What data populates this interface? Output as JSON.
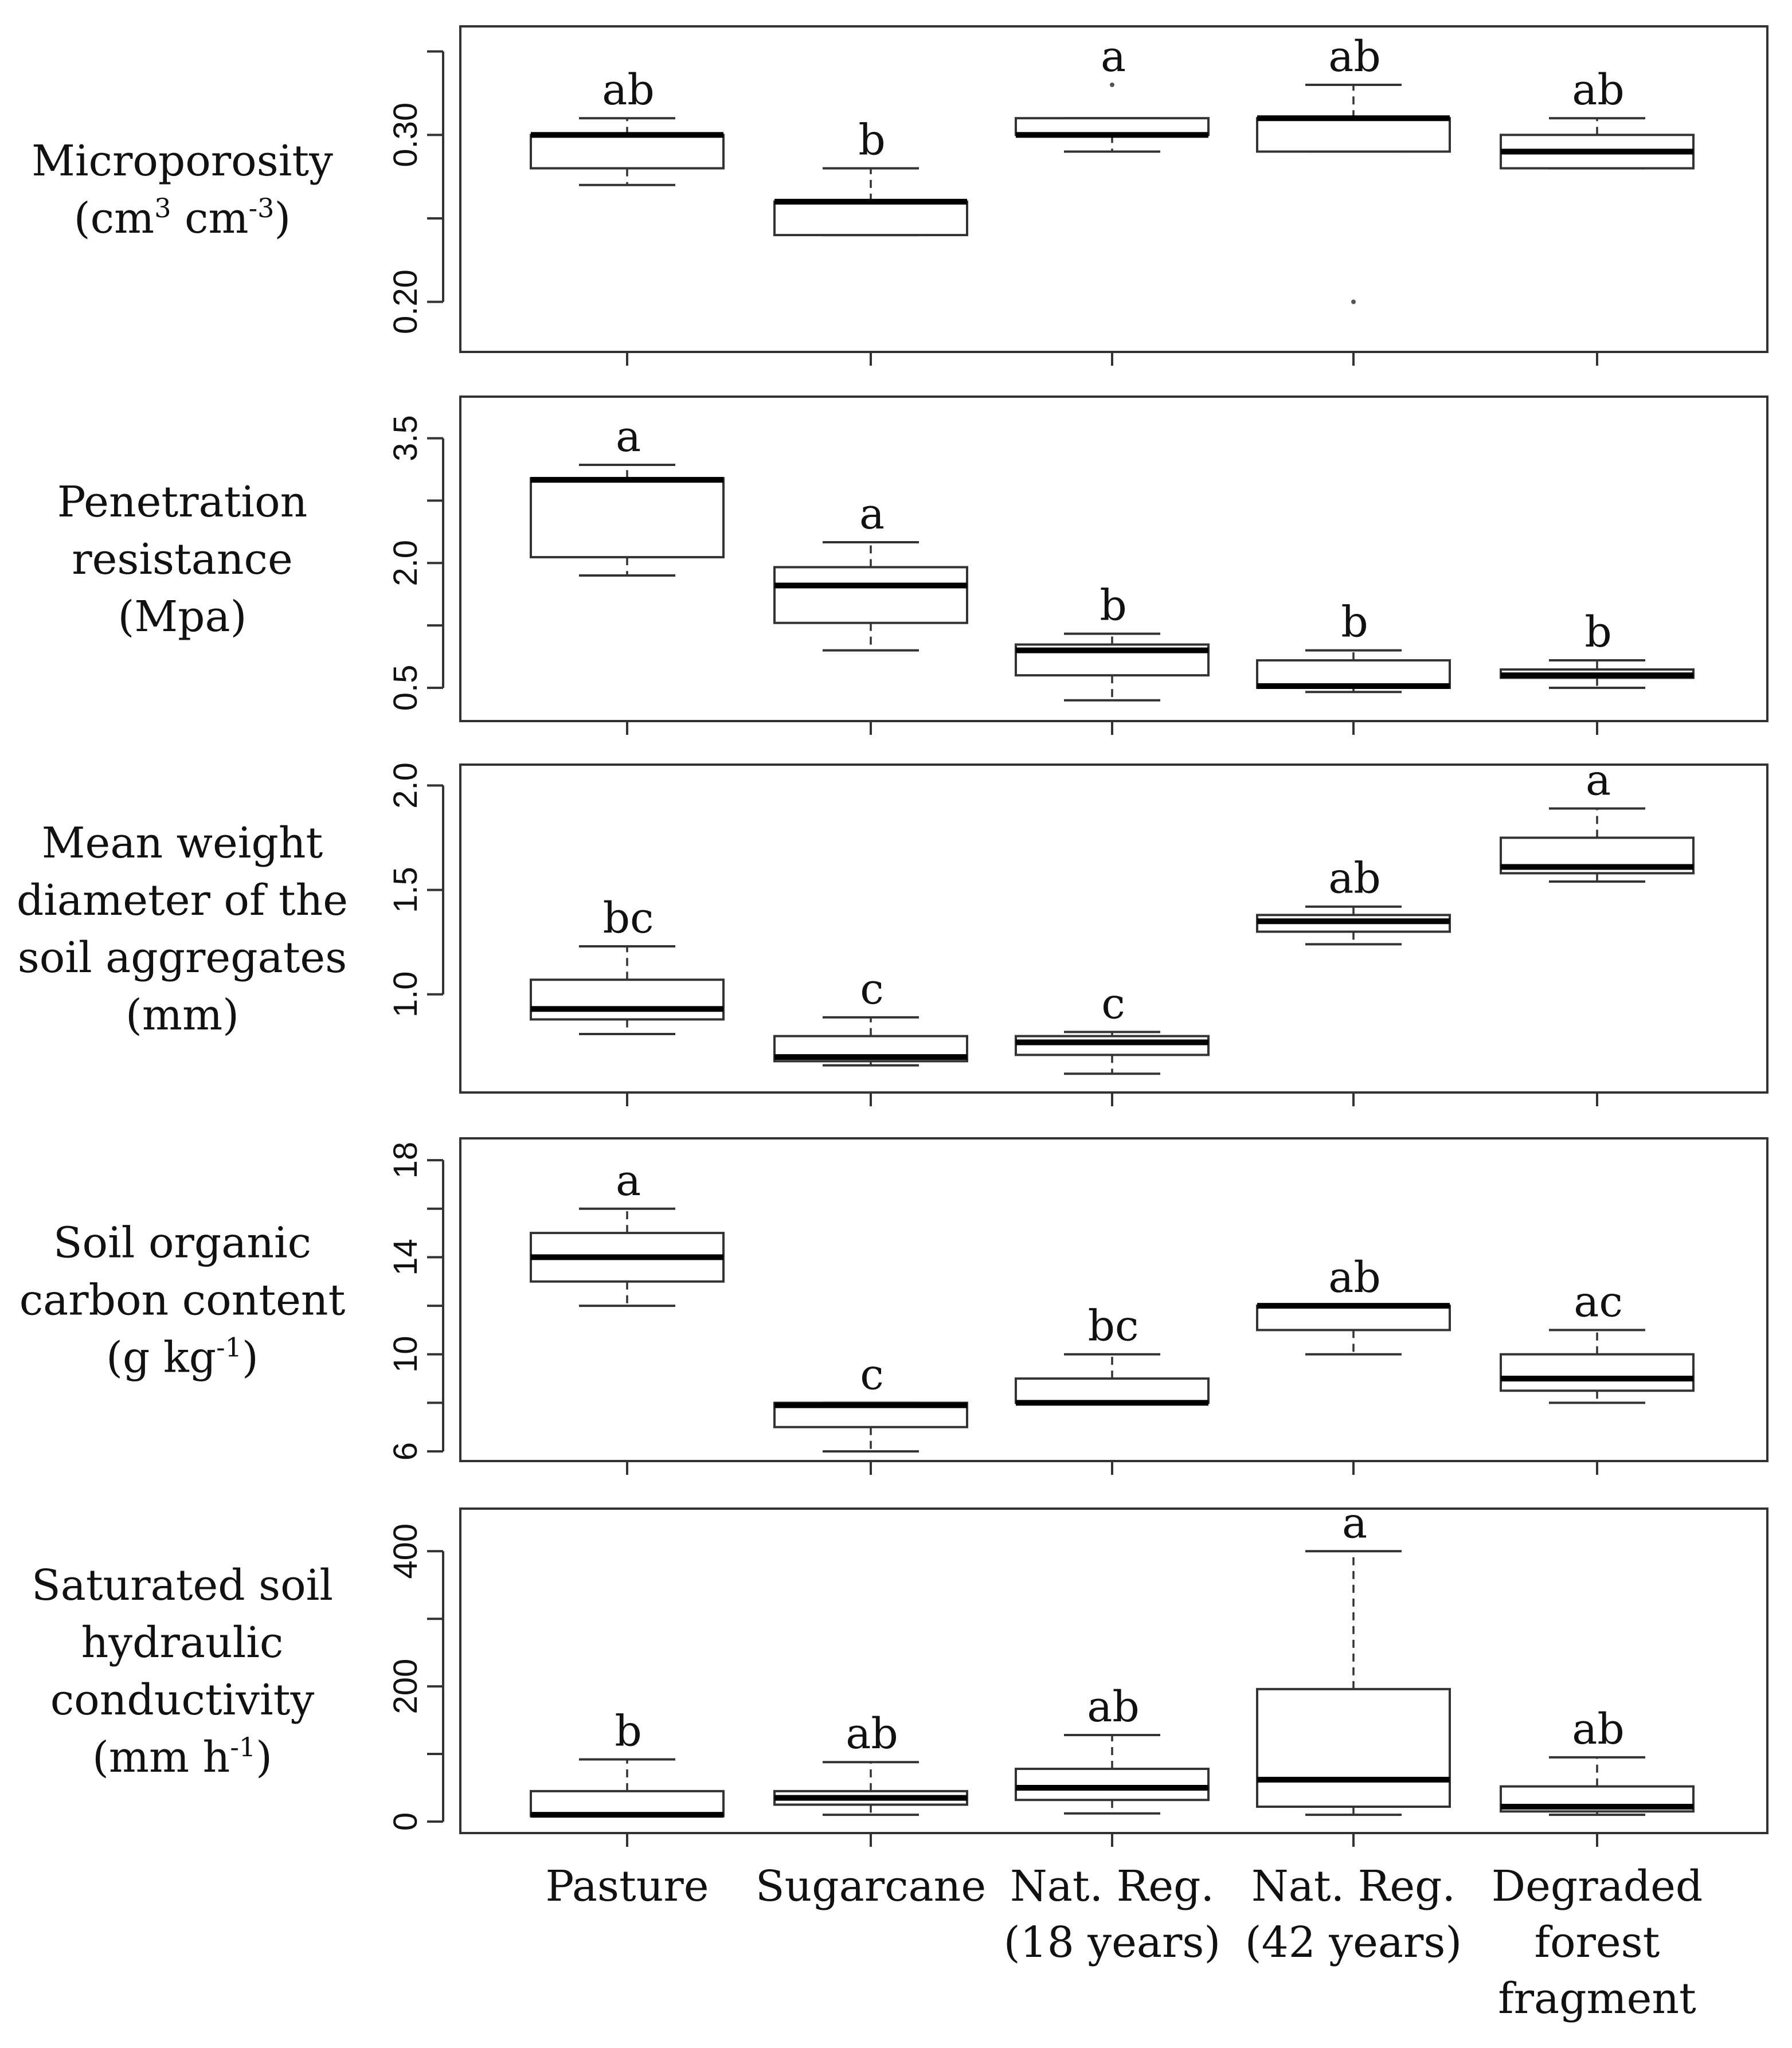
{
  "chart_data": {
    "type": "boxplot",
    "categories": [
      [
        "Pasture"
      ],
      [
        "Sugarcane"
      ],
      [
        "Nat. Reg.",
        "(18 years)"
      ],
      [
        "Nat. Reg.",
        "(42 years)"
      ],
      [
        "Degraded",
        "forest",
        "fragment"
      ]
    ],
    "panels": [
      {
        "ylabel_lines": [
          [
            {
              "t": "Microporosity"
            }
          ],
          [
            {
              "t": "(cm"
            },
            {
              "t": "3",
              "sup": true
            },
            {
              "t": " cm"
            },
            {
              "t": "-3",
              "sup": true
            },
            {
              "t": ")"
            }
          ]
        ],
        "ylim": [
          0.17,
          0.365
        ],
        "ticks": [
          0.2,
          0.25,
          0.3,
          0.35
        ],
        "tick_labels": [
          "0.20",
          "",
          "0.30",
          ""
        ],
        "boxes": [
          {
            "whislo": 0.27,
            "q1": 0.28,
            "med": 0.3,
            "q3": 0.3,
            "whishi": 0.31,
            "fliers": [],
            "letter": "ab"
          },
          {
            "whislo": 0.24,
            "q1": 0.24,
            "med": 0.26,
            "q3": 0.26,
            "whishi": 0.28,
            "fliers": [],
            "letter": "b"
          },
          {
            "whislo": 0.29,
            "q1": 0.3,
            "med": 0.3,
            "q3": 0.31,
            "whishi": 0.31,
            "fliers": [
              0.33
            ],
            "letter": "a"
          },
          {
            "whislo": 0.29,
            "q1": 0.29,
            "med": 0.31,
            "q3": 0.31,
            "whishi": 0.33,
            "fliers": [
              0.2
            ],
            "letter": "ab"
          },
          {
            "whislo": 0.28,
            "q1": 0.28,
            "med": 0.29,
            "q3": 0.3,
            "whishi": 0.31,
            "fliers": [],
            "letter": "ab"
          }
        ]
      },
      {
        "ylabel_lines": [
          [
            {
              "t": "Penetration"
            }
          ],
          [
            {
              "t": "resistance"
            }
          ],
          [
            {
              "t": "(Mpa)"
            }
          ]
        ],
        "ylim": [
          0.1,
          4.0
        ],
        "ticks": [
          0.5,
          1.25,
          2.0,
          2.75,
          3.5
        ],
        "tick_labels": [
          "0.5",
          "",
          "2.0",
          "",
          "3.5"
        ],
        "boxes": [
          {
            "whislo": 1.85,
            "q1": 2.07,
            "med": 3.0,
            "q3": 3.02,
            "whishi": 3.18,
            "fliers": [],
            "letter": "a"
          },
          {
            "whislo": 0.95,
            "q1": 1.28,
            "med": 1.73,
            "q3": 1.95,
            "whishi": 2.25,
            "fliers": [],
            "letter": "a"
          },
          {
            "whislo": 0.35,
            "q1": 0.65,
            "med": 0.95,
            "q3": 1.02,
            "whishi": 1.15,
            "fliers": [],
            "letter": "b"
          },
          {
            "whislo": 0.45,
            "q1": 0.5,
            "med": 0.52,
            "q3": 0.83,
            "whishi": 0.95,
            "fliers": [],
            "letter": "b"
          },
          {
            "whislo": 0.5,
            "q1": 0.62,
            "med": 0.65,
            "q3": 0.72,
            "whishi": 0.83,
            "fliers": [],
            "letter": "b"
          }
        ]
      },
      {
        "ylabel_lines": [
          [
            {
              "t": "Mean weight"
            }
          ],
          [
            {
              "t": "diameter of the"
            }
          ],
          [
            {
              "t": "soil aggregates"
            }
          ],
          [
            {
              "t": "(mm)"
            }
          ]
        ],
        "ylim": [
          0.53,
          2.1
        ],
        "ticks": [
          1.0,
          1.5,
          2.0
        ],
        "tick_labels": [
          "1.0",
          "1.5",
          "2.0"
        ],
        "boxes": [
          {
            "whislo": 0.81,
            "q1": 0.88,
            "med": 0.93,
            "q3": 1.07,
            "whishi": 1.23,
            "fliers": [],
            "letter": "bc"
          },
          {
            "whislo": 0.66,
            "q1": 0.68,
            "med": 0.7,
            "q3": 0.8,
            "whishi": 0.89,
            "fliers": [],
            "letter": "c"
          },
          {
            "whislo": 0.62,
            "q1": 0.71,
            "med": 0.77,
            "q3": 0.8,
            "whishi": 0.82,
            "fliers": [],
            "letter": "c"
          },
          {
            "whislo": 1.24,
            "q1": 1.3,
            "med": 1.35,
            "q3": 1.38,
            "whishi": 1.42,
            "fliers": [],
            "letter": "ab"
          },
          {
            "whislo": 1.54,
            "q1": 1.58,
            "med": 1.61,
            "q3": 1.75,
            "whishi": 1.89,
            "fliers": [],
            "letter": "a"
          }
        ]
      },
      {
        "ylabel_lines": [
          [
            {
              "t": "Soil organic"
            }
          ],
          [
            {
              "t": "carbon content"
            }
          ],
          [
            {
              "t": "(g kg"
            },
            {
              "t": "-1",
              "sup": true
            },
            {
              "t": ")"
            }
          ]
        ],
        "ylim": [
          5.6,
          18.9
        ],
        "ticks": [
          6,
          8,
          10,
          12,
          14,
          16,
          18
        ],
        "tick_labels": [
          "6",
          "",
          "10",
          "",
          "14",
          "",
          "18"
        ],
        "boxes": [
          {
            "whislo": 12,
            "q1": 13,
            "med": 14,
            "q3": 15,
            "whishi": 16,
            "fliers": [],
            "letter": "a"
          },
          {
            "whislo": 6,
            "q1": 7,
            "med": 7.9,
            "q3": 8,
            "whishi": 8,
            "fliers": [],
            "letter": "c"
          },
          {
            "whislo": 8,
            "q1": 8,
            "med": 8,
            "q3": 9,
            "whishi": 10,
            "fliers": [],
            "letter": "bc"
          },
          {
            "whislo": 10,
            "q1": 11,
            "med": 12,
            "q3": 12,
            "whishi": 12,
            "fliers": [],
            "letter": "ab"
          },
          {
            "whislo": 8,
            "q1": 8.5,
            "med": 9,
            "q3": 10,
            "whishi": 11,
            "fliers": [],
            "letter": "ac"
          }
        ]
      },
      {
        "ylabel_lines": [
          [
            {
              "t": "Saturated soil"
            }
          ],
          [
            {
              "t": "hydraulic"
            }
          ],
          [
            {
              "t": "conductivity"
            }
          ],
          [
            {
              "t": "(mm h"
            },
            {
              "t": "-1",
              "sup": true
            },
            {
              "t": ")"
            }
          ]
        ],
        "ylim": [
          -17,
          463
        ],
        "ticks": [
          0,
          100,
          200,
          300,
          400
        ],
        "tick_labels": [
          "0",
          "",
          "200",
          "",
          "400"
        ],
        "boxes": [
          {
            "whislo": 8,
            "q1": 8,
            "med": 10,
            "q3": 45,
            "whishi": 92,
            "fliers": [],
            "letter": "b"
          },
          {
            "whislo": 10,
            "q1": 25,
            "med": 35,
            "q3": 45,
            "whishi": 88,
            "fliers": [],
            "letter": "ab"
          },
          {
            "whislo": 12,
            "q1": 32,
            "med": 50,
            "q3": 78,
            "whishi": 128,
            "fliers": [],
            "letter": "ab"
          },
          {
            "whislo": 10,
            "q1": 22,
            "med": 62,
            "q3": 196,
            "whishi": 400,
            "fliers": [],
            "letter": "a"
          },
          {
            "whislo": 10,
            "q1": 15,
            "med": 22,
            "q3": 52,
            "whishi": 95,
            "fliers": [],
            "letter": "ab"
          }
        ]
      }
    ]
  }
}
